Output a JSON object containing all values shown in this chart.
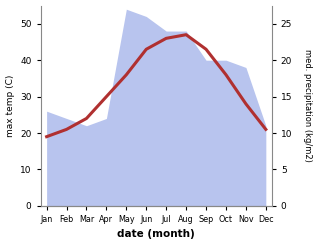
{
  "months": [
    "Jan",
    "Feb",
    "Mar",
    "Apr",
    "May",
    "Jun",
    "Jul",
    "Aug",
    "Sep",
    "Oct",
    "Nov",
    "Dec"
  ],
  "month_indices": [
    0,
    1,
    2,
    3,
    4,
    5,
    6,
    7,
    8,
    9,
    10,
    11
  ],
  "max_temp": [
    19,
    21,
    24,
    30,
    36,
    43,
    46,
    47,
    43,
    36,
    28,
    21
  ],
  "precipitation": [
    13,
    12,
    11,
    12,
    27,
    26,
    24,
    24,
    20,
    20,
    19,
    11
  ],
  "temp_ylim": [
    0,
    55
  ],
  "precip_ylim": [
    0,
    27.5
  ],
  "temp_yticks": [
    0,
    10,
    20,
    30,
    40,
    50
  ],
  "precip_yticks": [
    0,
    5,
    10,
    15,
    20,
    25
  ],
  "temp_color": "#b03030",
  "precip_fill_color": "#b8c4ee",
  "xlabel": "date (month)",
  "ylabel_left": "max temp (C)",
  "ylabel_right": "med. precipitation (kg/m2)",
  "bg_color": "#ffffff",
  "line_width": 2.2,
  "fill_alpha": 1.0
}
